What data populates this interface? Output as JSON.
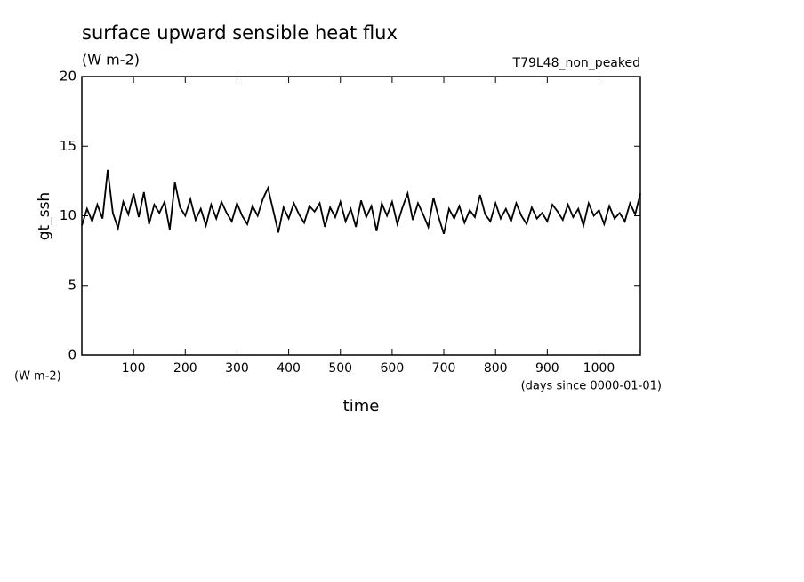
{
  "chart_data": {
    "type": "line",
    "title": "surface upward sensible heat flux",
    "subtitle": "(W m-2)",
    "annotation": "T79L48_non_peaked",
    "ylabel": "gt_ssh",
    "yunits": "(W m-2)",
    "xlabel": "time",
    "xunits": "(days since 0000-01-01)",
    "x": [
      0,
      10,
      20,
      30,
      40,
      50,
      60,
      70,
      80,
      90,
      100,
      110,
      120,
      130,
      140,
      150,
      160,
      170,
      180,
      190,
      200,
      210,
      220,
      230,
      240,
      250,
      260,
      270,
      280,
      290,
      300,
      310,
      320,
      330,
      340,
      350,
      360,
      370,
      380,
      390,
      400,
      410,
      420,
      430,
      440,
      450,
      460,
      470,
      480,
      490,
      500,
      510,
      520,
      530,
      540,
      550,
      560,
      570,
      580,
      590,
      600,
      610,
      620,
      630,
      640,
      650,
      660,
      670,
      680,
      690,
      700,
      710,
      720,
      730,
      740,
      750,
      760,
      770,
      780,
      790,
      800,
      810,
      820,
      830,
      840,
      850,
      860,
      870,
      880,
      890,
      900,
      910,
      920,
      930,
      940,
      950,
      960,
      970,
      980,
      990,
      1000,
      1010,
      1020,
      1030,
      1040,
      1050,
      1060,
      1070,
      1080
    ],
    "series": [
      {
        "color": "#000000",
        "values": [
          9.3,
          10.5,
          9.6,
          10.8,
          9.8,
          13.3,
          10.2,
          9.1,
          11.0,
          10.1,
          11.6,
          9.9,
          11.7,
          9.4,
          10.8,
          10.2,
          11.0,
          9.0,
          12.4,
          10.6,
          10.0,
          11.2,
          9.7,
          10.5,
          9.3,
          10.8,
          9.8,
          11.0,
          10.2,
          9.6,
          10.9,
          10.0,
          9.4,
          10.7,
          10.0,
          11.2,
          12.0,
          10.4,
          8.8,
          10.6,
          9.8,
          10.9,
          10.1,
          9.5,
          10.7,
          10.3,
          10.9,
          9.2,
          10.6,
          9.9,
          11.0,
          9.6,
          10.5,
          9.2,
          11.1,
          9.9,
          10.7,
          8.9,
          10.9,
          10.0,
          11.0,
          9.4,
          10.6,
          11.6,
          9.7,
          10.9,
          10.1,
          9.2,
          11.3,
          9.9,
          8.7,
          10.5,
          9.8,
          10.7,
          9.5,
          10.4,
          9.9,
          11.5,
          10.1,
          9.6,
          10.9,
          9.8,
          10.5,
          9.6,
          10.9,
          10.0,
          9.4,
          10.6,
          9.8,
          10.2,
          9.6,
          10.8,
          10.3,
          9.7,
          10.8,
          9.9,
          10.5,
          9.3,
          10.9,
          10.0,
          10.4,
          9.4,
          10.7,
          9.8,
          10.2,
          9.6,
          10.9,
          10.1,
          11.6
        ]
      }
    ],
    "xlim": [
      0,
      1080
    ],
    "xticks": [
      100,
      200,
      300,
      400,
      500,
      600,
      700,
      800,
      900,
      1000
    ],
    "ylim": [
      0,
      20
    ],
    "yticks": [
      0,
      5,
      10,
      15,
      20
    ]
  }
}
